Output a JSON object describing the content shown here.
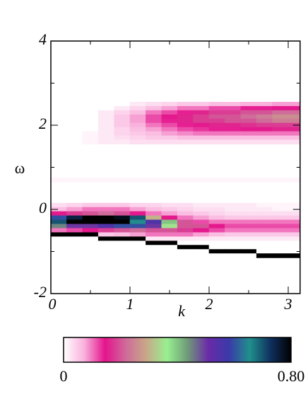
{
  "chart_data": {
    "type": "heatmap",
    "xlabel": "k",
    "ylabel": "ω",
    "xlim": [
      0,
      3.15
    ],
    "ylim": [
      -2,
      4
    ],
    "xticks": [
      0,
      1,
      2,
      3
    ],
    "yticks": [
      -2,
      0,
      2,
      4
    ],
    "xminorticks": [
      0.5,
      1.5,
      2.5
    ],
    "yminorticks": [
      -1,
      1,
      3
    ],
    "x": [
      0.1,
      0.3,
      0.5,
      0.7,
      0.9,
      1.1,
      1.3,
      1.5,
      1.7,
      1.9,
      2.1,
      2.3,
      2.5,
      2.7,
      2.9,
      3.1
    ],
    "y": [
      2.5,
      2.4,
      2.3,
      2.2,
      2.1,
      2.0,
      1.9,
      1.8,
      1.7,
      1.6,
      0.7,
      0.1,
      0.0,
      -0.1,
      -0.2,
      -0.3,
      -0.4,
      -0.5,
      -0.6,
      -0.7,
      -0.8,
      -0.9,
      -1.0,
      -1.1
    ],
    "z": [
      [
        0,
        0,
        0,
        0,
        0,
        0.02,
        0.03,
        0.04,
        0.05,
        0.05,
        0.06,
        0.06,
        0.07,
        0.07,
        0.08,
        0.08
      ],
      [
        0,
        0,
        0,
        0,
        0.02,
        0.04,
        0.06,
        0.08,
        0.1,
        0.1,
        0.12,
        0.12,
        0.14,
        0.14,
        0.15,
        0.15
      ],
      [
        0,
        0,
        0,
        0.02,
        0.04,
        0.06,
        0.1,
        0.12,
        0.14,
        0.16,
        0.18,
        0.18,
        0.2,
        0.2,
        0.22,
        0.22
      ],
      [
        0,
        0,
        0,
        0.02,
        0.05,
        0.08,
        0.12,
        0.15,
        0.16,
        0.18,
        0.2,
        0.2,
        0.22,
        0.24,
        0.26,
        0.26
      ],
      [
        0,
        0,
        0,
        0.02,
        0.05,
        0.08,
        0.12,
        0.14,
        0.16,
        0.18,
        0.18,
        0.2,
        0.2,
        0.22,
        0.24,
        0.24
      ],
      [
        0,
        0,
        0,
        0.02,
        0.05,
        0.07,
        0.1,
        0.12,
        0.14,
        0.15,
        0.16,
        0.16,
        0.17,
        0.18,
        0.18,
        0.18
      ],
      [
        0,
        0,
        0,
        0.02,
        0.04,
        0.06,
        0.08,
        0.1,
        0.12,
        0.13,
        0.14,
        0.14,
        0.15,
        0.15,
        0.16,
        0.16
      ],
      [
        0,
        0,
        0.01,
        0.02,
        0.04,
        0.05,
        0.06,
        0.08,
        0.09,
        0.1,
        0.1,
        0.1,
        0.1,
        0.1,
        0.1,
        0.1
      ],
      [
        0,
        0,
        0.01,
        0.02,
        0.03,
        0.04,
        0.05,
        0.05,
        0.06,
        0.06,
        0.06,
        0.06,
        0.06,
        0.06,
        0.06,
        0.06
      ],
      [
        0,
        0,
        0.01,
        0.02,
        0.02,
        0.03,
        0.03,
        0.03,
        0.03,
        0.03,
        0.03,
        0.03,
        0.03,
        0.03,
        0.03,
        0.03
      ],
      [
        0.01,
        0.01,
        0.01,
        0.01,
        0.01,
        0.01,
        0.01,
        0.01,
        0.01,
        0.01,
        0.01,
        0.01,
        0.01,
        0.01,
        0.01,
        0.01
      ],
      [
        0.03,
        0.04,
        0.05,
        0.05,
        0.05,
        0.04,
        0.04,
        0.03,
        0.03,
        0.02,
        0.02,
        0.02,
        0.02,
        0.01,
        0.01,
        0.01
      ],
      [
        0.06,
        0.08,
        0.1,
        0.1,
        0.1,
        0.08,
        0.06,
        0.05,
        0.04,
        0.03,
        0.03,
        0.02,
        0.02,
        0.02,
        0.01,
        0.01
      ],
      [
        0.15,
        0.18,
        0.2,
        0.22,
        0.2,
        0.15,
        0.1,
        0.08,
        0.06,
        0.05,
        0.04,
        0.03,
        0.03,
        0.03,
        0.03,
        0.03
      ],
      [
        0.6,
        0.75,
        0.8,
        0.8,
        0.78,
        0.7,
        0.3,
        0.15,
        0.1,
        0.08,
        0.06,
        0.05,
        0.05,
        0.05,
        0.05,
        0.05
      ],
      [
        0.7,
        0.8,
        0.8,
        0.8,
        0.8,
        0.65,
        0.55,
        0.4,
        0.2,
        0.12,
        0.1,
        0.1,
        0.1,
        0.1,
        0.1,
        0.1
      ],
      [
        0.45,
        0.5,
        0.5,
        0.55,
        0.6,
        0.6,
        0.5,
        0.35,
        0.2,
        0.2,
        0.15,
        0.12,
        0.12,
        0.12,
        0.12,
        0.12
      ],
      [
        0.1,
        0.12,
        0.15,
        0.18,
        0.2,
        0.22,
        0.2,
        0.2,
        0.18,
        0.15,
        0.12,
        0.1,
        0.1,
        0.1,
        0.1,
        0.1
      ],
      [
        0.8,
        0.8,
        0.8,
        0.05,
        0.06,
        0.08,
        0.1,
        0.1,
        0.1,
        0.08,
        0.06,
        0.05,
        0.05,
        0.05,
        0.05,
        0.05
      ],
      [
        0,
        0,
        0,
        0.8,
        0.8,
        0.8,
        0.02,
        0.02,
        0.02,
        0.02,
        0.02,
        0.02,
        0.02,
        0.02,
        0.02,
        0.02
      ],
      [
        0,
        0,
        0,
        0,
        0,
        0,
        0.8,
        0.8,
        0,
        0,
        0,
        0,
        0,
        0,
        0,
        0
      ],
      [
        0,
        0,
        0,
        0,
        0,
        0,
        0,
        0,
        0.8,
        0.8,
        0,
        0,
        0,
        0,
        0,
        0
      ],
      [
        0,
        0,
        0,
        0,
        0,
        0,
        0,
        0,
        0,
        0,
        0.8,
        0.8,
        0.8,
        0,
        0,
        0
      ],
      [
        0,
        0,
        0,
        0,
        0,
        0,
        0,
        0,
        0,
        0,
        0,
        0,
        0,
        0.8,
        0.8,
        0.8
      ]
    ],
    "zlim": [
      0,
      0.8
    ],
    "colorbar_ticks": [
      0,
      {
        "value": 0.8,
        "label": "0.80"
      }
    ],
    "colormap": [
      "#ffffff",
      "#f9b0dc",
      "#e4148c",
      "#cf6a9a",
      "#c8a888",
      "#98f090",
      "#6f9a78",
      "#6a2aa8",
      "#3a3aa8",
      "#20908c",
      "#103060",
      "#000000"
    ]
  }
}
